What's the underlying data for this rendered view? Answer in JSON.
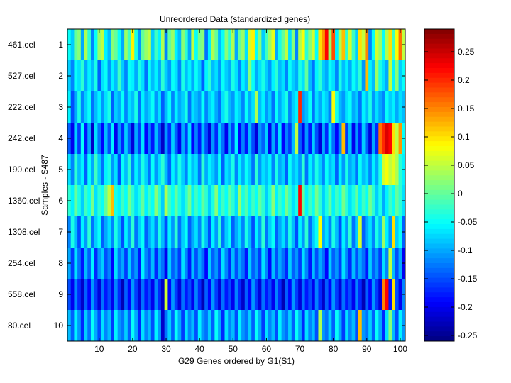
{
  "chart_data": {
    "type": "heatmap",
    "title": "Unreordered Data (standardized genes)",
    "xlabel": "G29 Genes ordered by G1(S1)",
    "ylabel": "Samples - S487",
    "n_columns": 101,
    "xlim": [
      0.5,
      101.5
    ],
    "x_ticks": [
      10,
      20,
      30,
      40,
      50,
      60,
      70,
      80,
      90,
      100
    ],
    "rows": [
      {
        "index": 1,
        "name": "461.cel"
      },
      {
        "index": 2,
        "name": "527.cel"
      },
      {
        "index": 3,
        "name": "222.cel"
      },
      {
        "index": 4,
        "name": "242.cel"
      },
      {
        "index": 5,
        "name": "190.cel"
      },
      {
        "index": 6,
        "name": "1360.cel"
      },
      {
        "index": 7,
        "name": "1308.cel"
      },
      {
        "index": 8,
        "name": "254.cel"
      },
      {
        "index": 9,
        "name": "558.cel"
      },
      {
        "index": 10,
        "name": "80.cel"
      }
    ],
    "colorbar": {
      "colormap": "jet",
      "clim": [
        -0.26,
        0.29
      ],
      "ticks": [
        0.25,
        0.2,
        0.15,
        0.1,
        0.05,
        0,
        -0.05,
        -0.1,
        -0.15,
        -0.2,
        -0.25
      ]
    },
    "values_note": "estimated per-cell values (101 genes per sample row)",
    "values": [
      [
        -0.05,
        -0.08,
        0.0,
        0.02,
        -0.1,
        0.04,
        -0.03,
        -0.12,
        -0.05,
        0.03,
        0.05,
        -0.06,
        -0.09,
        0.02,
        0.0,
        -0.05,
        -0.1,
        0.03,
        -0.02,
        0.09,
        -0.04,
        -0.11,
        0.0,
        0.03,
        0.05,
        -0.08,
        -0.02,
        -0.06,
        0.04,
        -0.12,
        0.0,
        0.03,
        -0.06,
        -0.09,
        0.02,
        -0.03,
        -0.1,
        0.05,
        -0.05,
        0.01,
        0.02,
        -0.13,
        -0.06,
        0.04,
        0.0,
        -0.09,
        -0.05,
        0.02,
        -0.03,
        0.04,
        -0.1,
        0.0,
        0.03,
        -0.07,
        0.06,
        0.09,
        -0.05,
        0.02,
        -0.08,
        -0.02,
        0.03,
        0.07,
        -0.1,
        -0.04,
        0.0,
        0.05,
        -0.07,
        0.02,
        -0.12,
        0.04,
        0.08,
        -0.03,
        0.02,
        0.06,
        -0.05,
        0.1,
        0.14,
        0.22,
        0.03,
        0.18,
        -0.06,
        0.04,
        0.12,
        -0.03,
        0.06,
        -0.02,
        -0.08,
        0.1,
        0.05,
        0.15,
        -0.12,
        -0.05,
        0.06,
        0.03,
        -0.05,
        0.04,
        0.1,
        -0.02,
        0.08,
        0.16,
        0.05
      ],
      [
        -0.08,
        -0.12,
        -0.05,
        -0.07,
        -0.03,
        -0.1,
        -0.06,
        -0.09,
        -0.04,
        -0.14,
        -0.07,
        -0.05,
        -0.11,
        -0.06,
        -0.09,
        -0.02,
        -0.08,
        -0.12,
        -0.05,
        -0.06,
        -0.1,
        -0.04,
        -0.07,
        -0.13,
        -0.05,
        -0.09,
        -0.06,
        -0.1,
        -0.03,
        -0.08,
        -0.11,
        -0.05,
        -0.07,
        -0.12,
        -0.04,
        -0.09,
        -0.06,
        -0.1,
        -0.05,
        -0.08,
        -0.14,
        -0.06,
        -0.03,
        -0.09,
        -0.07,
        -0.11,
        -0.05,
        -0.08,
        -0.1,
        -0.04,
        -0.07,
        -0.12,
        -0.06,
        -0.09,
        0.02,
        -0.05,
        -0.1,
        -0.07,
        -0.04,
        -0.08,
        -0.11,
        -0.06,
        -0.03,
        -0.09,
        -0.07,
        -0.12,
        -0.05,
        -0.08,
        -0.1,
        -0.04,
        -0.07,
        0.0,
        -0.09,
        -0.13,
        -0.06,
        -0.03,
        -0.08,
        -0.1,
        -0.05,
        -0.07,
        -0.12,
        -0.04,
        -0.09,
        -0.06,
        -0.1,
        -0.05,
        -0.08,
        -0.03,
        -0.11,
        0.12,
        -0.06,
        -0.09,
        0.03,
        -0.04,
        -0.07,
        -0.1,
        0.05,
        -0.06,
        0.02,
        -0.08,
        -0.05
      ],
      [
        -0.06,
        -0.15,
        -0.1,
        -0.04,
        -0.12,
        -0.08,
        -0.05,
        -0.13,
        -0.09,
        -0.06,
        -0.11,
        -0.07,
        -0.04,
        -0.14,
        -0.08,
        -0.1,
        -0.05,
        -0.12,
        -0.07,
        -0.09,
        -0.04,
        -0.13,
        -0.06,
        -0.1,
        -0.08,
        -0.05,
        -0.11,
        -0.07,
        -0.14,
        -0.09,
        -0.05,
        -0.12,
        -0.06,
        -0.1,
        -0.08,
        -0.04,
        -0.13,
        -0.07,
        -0.09,
        -0.11,
        -0.05,
        -0.12,
        -0.08,
        -0.06,
        -0.1,
        -0.13,
        -0.07,
        -0.04,
        -0.09,
        -0.11,
        -0.06,
        -0.08,
        -0.12,
        -0.05,
        -0.1,
        -0.07,
        0.04,
        -0.09,
        -0.06,
        -0.11,
        -0.08,
        -0.13,
        -0.05,
        -0.1,
        -0.07,
        -0.04,
        -0.12,
        -0.08,
        -0.06,
        0.2,
        -0.11,
        -0.09,
        -0.05,
        -0.13,
        -0.07,
        -0.1,
        -0.06,
        -0.08,
        -0.12,
        0.08,
        -0.04,
        -0.09,
        -0.11,
        -0.07,
        -0.05,
        -0.1,
        -0.08,
        -0.13,
        -0.06,
        -0.09,
        -0.04,
        -0.11,
        -0.07,
        -0.1,
        -0.12,
        -0.05,
        -0.08,
        -0.06,
        -0.1,
        -0.07,
        -0.09
      ],
      [
        -0.14,
        -0.2,
        -0.08,
        -0.16,
        -0.05,
        -0.18,
        -0.1,
        -0.22,
        -0.07,
        -0.13,
        -0.19,
        -0.09,
        -0.15,
        -0.06,
        -0.2,
        -0.11,
        -0.17,
        -0.08,
        -0.14,
        -0.21,
        -0.1,
        -0.16,
        -0.07,
        -0.19,
        -0.12,
        -0.18,
        -0.09,
        -0.15,
        -0.22,
        -0.11,
        -0.17,
        -0.08,
        -0.14,
        -0.2,
        -0.1,
        -0.16,
        -0.07,
        -0.19,
        -0.12,
        -0.18,
        -0.09,
        -0.15,
        -0.21,
        -0.11,
        -0.17,
        -0.08,
        -0.13,
        -0.2,
        -0.1,
        -0.16,
        -0.06,
        -0.19,
        -0.12,
        -0.18,
        -0.09,
        -0.15,
        -0.21,
        -0.11,
        -0.14,
        -0.08,
        -0.2,
        -0.1,
        -0.17,
        -0.07,
        -0.19,
        -0.12,
        -0.16,
        -0.09,
        0.05,
        -0.14,
        -0.2,
        -0.11,
        -0.18,
        -0.08,
        -0.15,
        -0.21,
        -0.1,
        -0.17,
        -0.07,
        -0.13,
        -0.19,
        -0.12,
        0.12,
        -0.16,
        -0.09,
        -0.2,
        -0.11,
        -0.18,
        -0.08,
        -0.14,
        -0.21,
        -0.1,
        -0.17,
        0.16,
        0.2,
        0.24,
        0.22,
        0.1,
        0.05,
        0.14,
        -0.05
      ],
      [
        -0.07,
        -0.12,
        -0.03,
        -0.09,
        -0.06,
        -0.14,
        -0.05,
        -0.1,
        -0.02,
        -0.08,
        -0.13,
        -0.06,
        -0.04,
        -0.11,
        -0.07,
        -0.15,
        -0.05,
        -0.09,
        -0.03,
        -0.12,
        -0.06,
        -0.1,
        -0.04,
        -0.08,
        -0.13,
        -0.05,
        -0.11,
        -0.07,
        -0.03,
        -0.09,
        -0.14,
        -0.06,
        -0.1,
        -0.04,
        -0.08,
        -0.12,
        -0.05,
        -0.09,
        -0.07,
        -0.13,
        -0.03,
        -0.1,
        -0.06,
        -0.08,
        -0.11,
        -0.05,
        -0.14,
        -0.07,
        -0.09,
        -0.04,
        -0.12,
        -0.06,
        -0.1,
        -0.05,
        -0.08,
        -0.13,
        -0.03,
        -0.11,
        -0.07,
        -0.09,
        -0.06,
        -0.12,
        -0.04,
        -0.1,
        -0.08,
        -0.14,
        -0.05,
        -0.09,
        -0.07,
        -0.11,
        -0.03,
        -0.13,
        -0.06,
        -0.1,
        -0.04,
        -0.08,
        -0.12,
        -0.05,
        -0.09,
        -0.07,
        -0.14,
        -0.06,
        -0.11,
        -0.04,
        -0.1,
        -0.08,
        -0.13,
        -0.05,
        -0.09,
        -0.07,
        -0.12,
        -0.06,
        -0.1,
        -0.04,
        0.06,
        0.08,
        0.05,
        0.07,
        0.04,
        -0.03,
        -0.06
      ],
      [
        -0.03,
        -0.06,
        0.0,
        -0.04,
        -0.08,
        -0.02,
        -0.05,
        0.01,
        -0.07,
        -0.03,
        -0.05,
        0.0,
        0.05,
        0.12,
        -0.04,
        -0.06,
        -0.02,
        -0.05,
        0.01,
        -0.03,
        -0.07,
        -0.04,
        0.0,
        -0.06,
        -0.02,
        -0.05,
        0.02,
        -0.03,
        -0.08,
        0.04,
        -0.02,
        -0.05,
        0.0,
        -0.04,
        -0.07,
        -0.03,
        0.01,
        -0.06,
        -0.02,
        -0.05,
        0.0,
        -0.03,
        -0.08,
        -0.04,
        0.02,
        -0.06,
        -0.02,
        -0.05,
        0.0,
        -0.03,
        -0.07,
        0.03,
        -0.04,
        -0.01,
        -0.06,
        -0.02,
        -0.05,
        0.0,
        -0.03,
        -0.08,
        -0.04,
        0.02,
        -0.06,
        -0.02,
        -0.05,
        0.01,
        -0.03,
        -0.07,
        -0.04,
        0.22,
        0.0,
        -0.06,
        -0.02,
        -0.05,
        0.01,
        -0.03,
        -0.08,
        -0.04,
        0.0,
        -0.06,
        -0.02,
        -0.05,
        0.01,
        -0.03,
        -0.07,
        -0.04,
        0.0,
        -0.06,
        -0.02,
        -0.05,
        0.01,
        -0.03,
        -0.08,
        -0.04,
        -0.1,
        -0.06,
        -0.02,
        -0.05,
        0.0,
        -0.03,
        -0.07
      ],
      [
        -0.12,
        -0.04,
        -0.09,
        -0.15,
        -0.06,
        -0.11,
        -0.03,
        -0.13,
        -0.08,
        -0.05,
        -0.14,
        -0.1,
        -0.07,
        -0.12,
        -0.04,
        -0.09,
        -0.15,
        -0.06,
        -0.11,
        -0.03,
        -0.13,
        -0.08,
        -0.05,
        -0.14,
        -0.1,
        -0.07,
        -0.12,
        -0.04,
        -0.09,
        -0.15,
        -0.06,
        -0.11,
        -0.03,
        -0.13,
        -0.08,
        -0.05,
        -0.14,
        -0.1,
        -0.07,
        -0.12,
        -0.04,
        -0.09,
        -0.15,
        -0.06,
        -0.11,
        -0.03,
        -0.13,
        -0.08,
        -0.05,
        -0.14,
        -0.1,
        -0.07,
        -0.12,
        -0.04,
        -0.09,
        -0.15,
        -0.06,
        -0.11,
        -0.03,
        -0.13,
        -0.08,
        -0.05,
        -0.14,
        -0.1,
        -0.07,
        -0.12,
        -0.04,
        -0.09,
        -0.15,
        -0.06,
        -0.11,
        -0.03,
        -0.13,
        -0.08,
        -0.05,
        0.08,
        -0.1,
        -0.07,
        -0.12,
        -0.04,
        -0.09,
        -0.15,
        -0.06,
        -0.11,
        -0.03,
        -0.13,
        -0.08,
        0.06,
        -0.14,
        -0.1,
        -0.07,
        -0.12,
        -0.04,
        -0.09,
        0.03,
        -0.06,
        -0.11,
        0.1,
        -0.08,
        -0.05,
        -0.14
      ],
      [
        -0.1,
        -0.16,
        -0.07,
        -0.13,
        -0.18,
        -0.09,
        -0.14,
        -0.06,
        -0.17,
        -0.11,
        -0.08,
        -0.15,
        -0.12,
        -0.19,
        -0.07,
        -0.13,
        -0.1,
        -0.16,
        -0.08,
        -0.14,
        -0.11,
        -0.18,
        -0.06,
        -0.12,
        -0.15,
        -0.09,
        -0.17,
        -0.1,
        -0.13,
        -0.2,
        -0.08,
        -0.14,
        -0.11,
        -0.16,
        -0.07,
        -0.12,
        -0.18,
        -0.09,
        -0.15,
        -0.1,
        -0.13,
        -0.19,
        -0.08,
        -0.14,
        -0.11,
        -0.16,
        -0.07,
        -0.12,
        -0.17,
        -0.09,
        -0.15,
        -0.1,
        -0.13,
        -0.18,
        -0.08,
        -0.14,
        -0.11,
        -0.16,
        -0.07,
        -0.12,
        -0.19,
        -0.09,
        -0.15,
        -0.1,
        -0.13,
        -0.17,
        -0.08,
        -0.14,
        -0.11,
        -0.16,
        -0.07,
        -0.12,
        -0.18,
        -0.09,
        -0.15,
        -0.1,
        -0.13,
        -0.19,
        -0.08,
        -0.14,
        -0.11,
        -0.16,
        -0.07,
        -0.12,
        -0.17,
        -0.09,
        -0.15,
        -0.1,
        -0.13,
        -0.18,
        -0.08,
        -0.14,
        -0.11,
        -0.16,
        -0.07,
        -0.12,
        0.05,
        -0.09,
        -0.15,
        -0.1,
        -0.2
      ],
      [
        -0.15,
        -0.2,
        -0.12,
        -0.17,
        -0.22,
        -0.14,
        -0.19,
        -0.11,
        -0.16,
        -0.21,
        -0.13,
        -0.18,
        -0.15,
        -0.2,
        -0.12,
        -0.17,
        -0.23,
        -0.14,
        -0.19,
        -0.11,
        -0.16,
        -0.21,
        -0.13,
        -0.18,
        -0.15,
        -0.2,
        -0.12,
        -0.17,
        -0.22,
        0.06,
        -0.19,
        -0.11,
        -0.16,
        -0.21,
        -0.13,
        -0.18,
        -0.15,
        -0.2,
        -0.12,
        -0.17,
        -0.23,
        -0.14,
        -0.19,
        -0.11,
        -0.16,
        -0.21,
        -0.13,
        -0.18,
        -0.15,
        -0.2,
        -0.12,
        -0.17,
        -0.22,
        -0.14,
        -0.19,
        -0.11,
        -0.16,
        -0.21,
        -0.13,
        -0.18,
        -0.15,
        -0.2,
        -0.12,
        -0.17,
        -0.23,
        -0.14,
        -0.19,
        -0.11,
        -0.16,
        -0.21,
        -0.13,
        -0.18,
        -0.15,
        -0.2,
        -0.12,
        -0.17,
        -0.22,
        -0.14,
        -0.19,
        -0.11,
        -0.16,
        -0.21,
        -0.13,
        -0.18,
        -0.15,
        -0.2,
        -0.12,
        -0.17,
        -0.23,
        -0.14,
        -0.19,
        -0.11,
        -0.16,
        -0.21,
        0.15,
        0.22,
        -0.18,
        0.1,
        -0.15,
        -0.2,
        -0.12
      ],
      [
        -0.09,
        -0.14,
        -0.06,
        -0.11,
        -0.17,
        -0.08,
        -0.13,
        -0.05,
        -0.1,
        -0.15,
        -0.07,
        -0.12,
        -0.09,
        -0.16,
        -0.06,
        -0.11,
        -0.13,
        -0.08,
        -0.14,
        -0.05,
        -0.1,
        -0.17,
        -0.07,
        -0.12,
        -0.09,
        -0.15,
        -0.06,
        -0.11,
        -0.22,
        -0.13,
        -0.08,
        -0.14,
        -0.05,
        -0.1,
        -0.16,
        -0.07,
        -0.12,
        -0.09,
        -0.15,
        -0.06,
        -0.11,
        -0.13,
        -0.08,
        -0.14,
        -0.05,
        -0.1,
        -0.17,
        -0.07,
        -0.12,
        -0.09,
        -0.15,
        -0.06,
        -0.11,
        -0.13,
        -0.08,
        -0.14,
        -0.05,
        -0.1,
        -0.16,
        -0.07,
        -0.12,
        -0.09,
        -0.15,
        -0.06,
        -0.11,
        -0.13,
        -0.08,
        -0.14,
        -0.05,
        -0.1,
        -0.17,
        -0.07,
        -0.12,
        -0.09,
        -0.15,
        0.04,
        -0.11,
        -0.13,
        -0.08,
        -0.14,
        -0.05,
        -0.1,
        -0.16,
        -0.07,
        -0.12,
        -0.09,
        -0.15,
        0.12,
        -0.11,
        -0.13,
        -0.08,
        -0.14,
        -0.05,
        -0.1,
        -0.17,
        -0.07,
        0.02,
        -0.09,
        -0.15,
        -0.06,
        -0.11
      ]
    ]
  }
}
